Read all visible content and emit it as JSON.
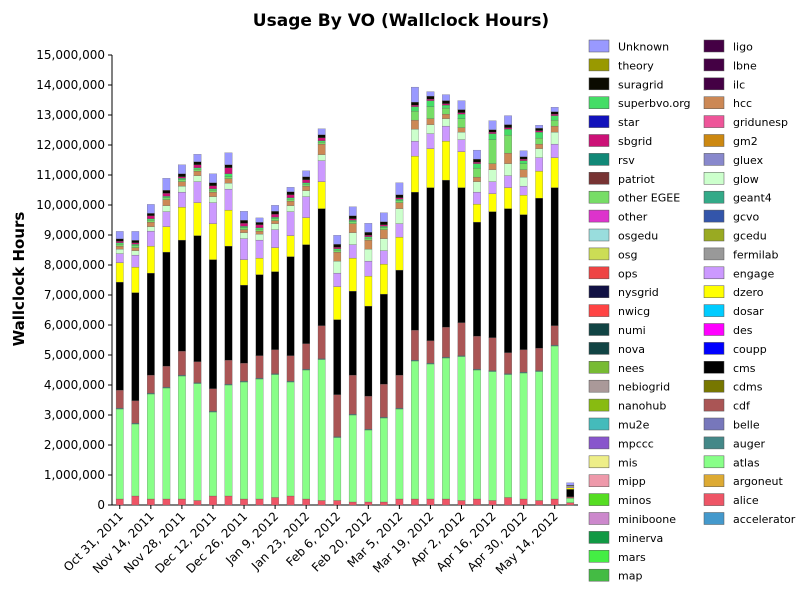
{
  "chart_data": {
    "type": "bar",
    "stacked": true,
    "title": "Usage By VO (Wallclock Hours)",
    "xlabel": "",
    "ylabel": "Wallclock Hours",
    "ylim": [
      0,
      15000000
    ],
    "yticks": [
      0,
      1000000,
      2000000,
      3000000,
      4000000,
      5000000,
      6000000,
      7000000,
      8000000,
      9000000,
      10000000,
      11000000,
      12000000,
      13000000,
      14000000,
      15000000
    ],
    "ytick_labels": [
      "0",
      "1,000,000",
      "2,000,000",
      "3,000,000",
      "4,000,000",
      "5,000,000",
      "6,000,000",
      "7,000,000",
      "8,000,000",
      "9,000,000",
      "10,000,000",
      "11,000,000",
      "12,000,000",
      "13,000,000",
      "14,000,000",
      "15,000,000"
    ],
    "x_tick_labels": [
      "Oct 31, 2011",
      "Nov 14, 2011",
      "Nov 28, 2011",
      "Dec 12, 2011",
      "Dec 26, 2011",
      "Jan 9, 2012",
      "Jan 23, 2012",
      "Feb 6, 2012",
      "Feb 20, 2012",
      "Mar 5, 2012",
      "Mar 19, 2012",
      "Apr 2, 2012",
      "Apr 16, 2012",
      "Apr 30, 2012",
      "May 14, 2012"
    ],
    "x_tick_positions": [
      0.5,
      2.5,
      4.5,
      6.5,
      8.5,
      10.5,
      12.5,
      14.5,
      16.5,
      18.5,
      20.5,
      22.5,
      24.5,
      26.5,
      28.5
    ],
    "legend_position": "right",
    "grid": false,
    "legend": [
      {
        "name": "Unknown",
        "color": "#9999ff"
      },
      {
        "name": "theory",
        "color": "#999900"
      },
      {
        "name": "suragrid",
        "color": "#0b0b00"
      },
      {
        "name": "superbvo.org",
        "color": "#44dd66"
      },
      {
        "name": "star",
        "color": "#1111bb"
      },
      {
        "name": "sbgrid",
        "color": "#cc1177"
      },
      {
        "name": "rsv",
        "color": "#118877"
      },
      {
        "name": "patriot",
        "color": "#773333"
      },
      {
        "name": "other EGEE",
        "color": "#77dd66"
      },
      {
        "name": "other",
        "color": "#dd33cc"
      },
      {
        "name": "osgedu",
        "color": "#99dddd"
      },
      {
        "name": "osg",
        "color": "#ccdd55"
      },
      {
        "name": "ops",
        "color": "#ee4444"
      },
      {
        "name": "nysgrid",
        "color": "#111144"
      },
      {
        "name": "nwicg",
        "color": "#ff4444"
      },
      {
        "name": "numi",
        "color": "#114444"
      },
      {
        "name": "nova",
        "color": "#114444"
      },
      {
        "name": "nees",
        "color": "#77bb33"
      },
      {
        "name": "nebiogrid",
        "color": "#aa9999"
      },
      {
        "name": "nanohub",
        "color": "#88bb11"
      },
      {
        "name": "mu2e",
        "color": "#44bbbb"
      },
      {
        "name": "mpccc",
        "color": "#8855cc"
      },
      {
        "name": "mis",
        "color": "#eeee88"
      },
      {
        "name": "mipp",
        "color": "#ee99aa"
      },
      {
        "name": "minos",
        "color": "#55dd22"
      },
      {
        "name": "miniboone",
        "color": "#cc88cc"
      },
      {
        "name": "minerva",
        "color": "#119944"
      },
      {
        "name": "mars",
        "color": "#44ee44"
      },
      {
        "name": "map",
        "color": "#44bb44"
      },
      {
        "name": "ligo",
        "color": "#440044"
      },
      {
        "name": "lbne",
        "color": "#440044"
      },
      {
        "name": "ilc",
        "color": "#440044"
      },
      {
        "name": "hcc",
        "color": "#cc8855"
      },
      {
        "name": "gridunesp",
        "color": "#ee5599"
      },
      {
        "name": "gm2",
        "color": "#cc8811"
      },
      {
        "name": "gluex",
        "color": "#8888cc"
      },
      {
        "name": "glow",
        "color": "#ccffcc"
      },
      {
        "name": "geant4",
        "color": "#33aa88"
      },
      {
        "name": "gcvo",
        "color": "#3355aa"
      },
      {
        "name": "gcedu",
        "color": "#99aa22"
      },
      {
        "name": "fermilab",
        "color": "#999999"
      },
      {
        "name": "engage",
        "color": "#cc99ff"
      },
      {
        "name": "dzero",
        "color": "#ffff00"
      },
      {
        "name": "dosar",
        "color": "#00ccff"
      },
      {
        "name": "des",
        "color": "#ff00ff"
      },
      {
        "name": "coupp",
        "color": "#0000ff"
      },
      {
        "name": "cms",
        "color": "#000000"
      },
      {
        "name": "cdms",
        "color": "#777700"
      },
      {
        "name": "cdf",
        "color": "#aa5555"
      },
      {
        "name": "belle",
        "color": "#7777bb"
      },
      {
        "name": "auger",
        "color": "#448888"
      },
      {
        "name": "atlas",
        "color": "#88ff88"
      },
      {
        "name": "argoneut",
        "color": "#ddaa33"
      },
      {
        "name": "alice",
        "color": "#ee5566"
      },
      {
        "name": "accelerator",
        "color": "#4499cc"
      }
    ],
    "series": [
      {
        "name": "alice",
        "color": "#ee5566",
        "values": [
          200000,
          300000,
          200000,
          200000,
          200000,
          150000,
          300000,
          300000,
          200000,
          200000,
          250000,
          300000,
          200000,
          150000,
          150000,
          100000,
          100000,
          100000,
          200000,
          200000,
          200000,
          200000,
          150000,
          200000,
          150000,
          250000,
          200000,
          150000,
          200000,
          80000
        ]
      },
      {
        "name": "atlas",
        "color": "#88ff88",
        "values": [
          3000000,
          2400000,
          3500000,
          3700000,
          4100000,
          3900000,
          2800000,
          3700000,
          3900000,
          4000000,
          4100000,
          3800000,
          4300000,
          4700000,
          2100000,
          2900000,
          2400000,
          2800000,
          3000000,
          4600000,
          4500000,
          4700000,
          4800000,
          4300000,
          4300000,
          4100000,
          4200000,
          4300000,
          5100000,
          150000
        ]
      },
      {
        "name": "auger",
        "color": "#448888",
        "values": [
          30000,
          30000,
          30000,
          30000,
          30000,
          30000,
          30000,
          30000,
          30000,
          30000,
          30000,
          30000,
          30000,
          30000,
          30000,
          30000,
          30000,
          30000,
          30000,
          30000,
          30000,
          30000,
          30000,
          30000,
          30000,
          30000,
          30000,
          30000,
          30000,
          0
        ]
      },
      {
        "name": "cdf",
        "color": "#aa5555",
        "values": [
          600000,
          750000,
          600000,
          700000,
          800000,
          700000,
          750000,
          800000,
          600000,
          750000,
          800000,
          850000,
          850000,
          1100000,
          1400000,
          1300000,
          1100000,
          1100000,
          1100000,
          1000000,
          750000,
          1000000,
          1100000,
          1100000,
          1100000,
          700000,
          750000,
          750000,
          650000,
          40000
        ]
      },
      {
        "name": "cms",
        "color": "#000000",
        "values": [
          3600000,
          3600000,
          3400000,
          3800000,
          3700000,
          4200000,
          4300000,
          3800000,
          2600000,
          2700000,
          2600000,
          3300000,
          3300000,
          3900000,
          2500000,
          2800000,
          3000000,
          3000000,
          3500000,
          4600000,
          5100000,
          4900000,
          4500000,
          3800000,
          4200000,
          4800000,
          4500000,
          5000000,
          4600000,
          250000
        ]
      },
      {
        "name": "dzero",
        "color": "#ffff00",
        "values": [
          650000,
          850000,
          900000,
          850000,
          1100000,
          1100000,
          1200000,
          1200000,
          850000,
          550000,
          800000,
          700000,
          900000,
          900000,
          1100000,
          1100000,
          1000000,
          1000000,
          1100000,
          1200000,
          1300000,
          1300000,
          1200000,
          600000,
          600000,
          700000,
          650000,
          900000,
          1000000,
          50000
        ]
      },
      {
        "name": "engage",
        "color": "#cc99ff",
        "values": [
          300000,
          400000,
          500000,
          500000,
          500000,
          700000,
          700000,
          700000,
          700000,
          600000,
          600000,
          800000,
          700000,
          700000,
          450000,
          450000,
          500000,
          450000,
          450000,
          500000,
          500000,
          500000,
          400000,
          400000,
          400000,
          400000,
          300000,
          450000,
          450000,
          30000
        ]
      },
      {
        "name": "glow",
        "color": "#ccffcc",
        "values": [
          150000,
          150000,
          150000,
          200000,
          200000,
          200000,
          200000,
          200000,
          200000,
          200000,
          200000,
          200000,
          200000,
          200000,
          400000,
          400000,
          400000,
          400000,
          500000,
          400000,
          300000,
          250000,
          250000,
          350000,
          400000,
          400000,
          300000,
          300000,
          400000,
          20000
        ]
      },
      {
        "name": "hcc",
        "color": "#cc8855",
        "values": [
          100000,
          100000,
          150000,
          200000,
          150000,
          150000,
          150000,
          150000,
          100000,
          100000,
          100000,
          150000,
          150000,
          350000,
          300000,
          300000,
          300000,
          300000,
          200000,
          300000,
          200000,
          150000,
          150000,
          150000,
          200000,
          350000,
          250000,
          150000,
          200000,
          20000
        ]
      },
      {
        "name": "other EGEE",
        "color": "#77dd66",
        "values": [
          60000,
          60000,
          60000,
          60000,
          60000,
          60000,
          60000,
          60000,
          60000,
          60000,
          60000,
          60000,
          60000,
          60000,
          60000,
          60000,
          60000,
          60000,
          60000,
          300000,
          400000,
          200000,
          300000,
          300000,
          800000,
          600000,
          200000,
          200000,
          200000,
          0
        ]
      },
      {
        "name": "superbvo.org",
        "color": "#44dd66",
        "values": [
          50000,
          50000,
          50000,
          50000,
          50000,
          50000,
          50000,
          100000,
          50000,
          50000,
          50000,
          50000,
          50000,
          50000,
          50000,
          50000,
          50000,
          50000,
          50000,
          150000,
          200000,
          100000,
          150000,
          150000,
          200000,
          200000,
          100000,
          200000,
          150000,
          0
        ]
      },
      {
        "name": "sbgrid",
        "color": "#cc1177",
        "values": [
          50000,
          50000,
          100000,
          100000,
          50000,
          100000,
          100000,
          200000,
          100000,
          100000,
          100000,
          100000,
          100000,
          100000,
          50000,
          50000,
          50000,
          50000,
          50000,
          50000,
          50000,
          50000,
          50000,
          50000,
          50000,
          50000,
          50000,
          50000,
          50000,
          0
        ]
      },
      {
        "name": "suragrid",
        "color": "#0b0b00",
        "values": [
          80000,
          80000,
          80000,
          100000,
          100000,
          100000,
          100000,
          100000,
          100000,
          80000,
          100000,
          100000,
          100000,
          100000,
          100000,
          100000,
          100000,
          100000,
          100000,
          100000,
          100000,
          100000,
          100000,
          100000,
          80000,
          100000,
          80000,
          80000,
          80000,
          20000
        ]
      },
      {
        "name": "Unknown",
        "color": "#9999ff",
        "values": [
          250000,
          300000,
          300000,
          400000,
          300000,
          250000,
          300000,
          400000,
          300000,
          150000,
          200000,
          150000,
          200000,
          200000,
          300000,
          300000,
          300000,
          300000,
          400000,
          500000,
          150000,
          200000,
          300000,
          300000,
          300000,
          300000,
          200000,
          100000,
          150000,
          80000
        ]
      }
    ]
  }
}
